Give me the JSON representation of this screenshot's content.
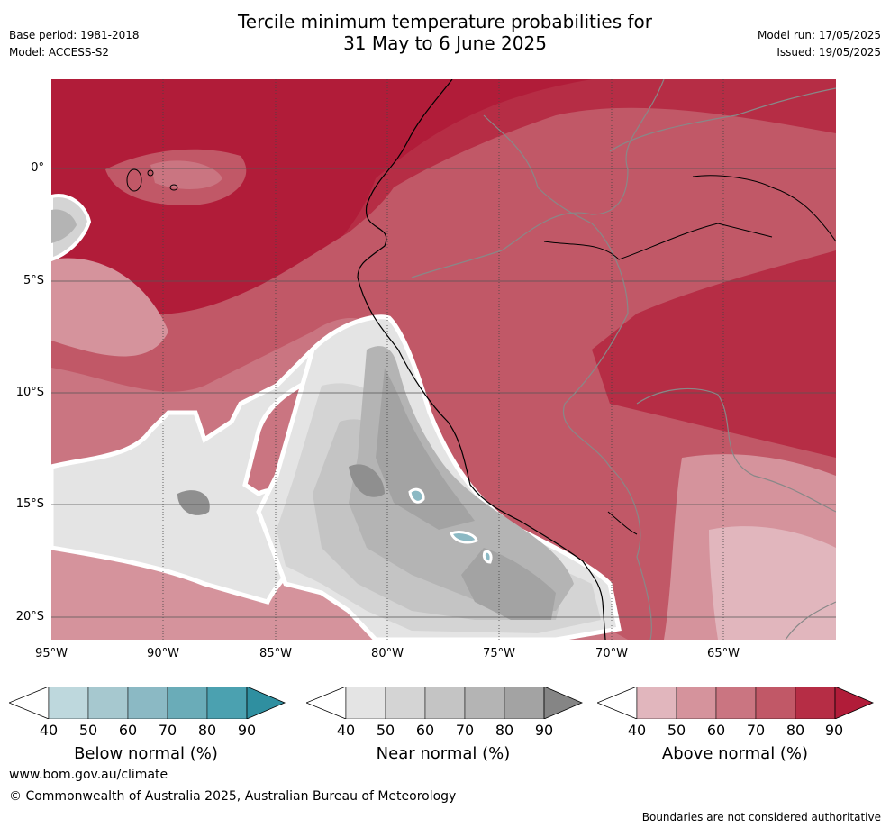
{
  "header": {
    "title_line1": "Tercile minimum temperature probabilities for",
    "title_line2": "31 May to 6 June 2025",
    "base_period": "Base period: 1981-2018",
    "model": "Model: ACCESS-S2",
    "model_run": "Model run: 17/05/2025",
    "issued": "Issued: 19/05/2025"
  },
  "map": {
    "lat_labels": [
      "0°",
      "5°S",
      "10°S",
      "15°S",
      "20°S"
    ],
    "lon_labels": [
      "95°W",
      "90°W",
      "85°W",
      "80°W",
      "75°W",
      "70°W",
      "65°W"
    ],
    "lat_ticks": [
      0,
      -5,
      -10,
      -15,
      -20
    ],
    "lon_ticks": [
      -95,
      -90,
      -85,
      -80,
      -75,
      -70,
      -65
    ],
    "extent": {
      "lon_min": -95,
      "lon_max": -60,
      "lat_min": -21,
      "lat_max": 4
    }
  },
  "colorbars": [
    {
      "name": "below",
      "label": "Below normal (%)",
      "ticks": [
        "40",
        "50",
        "60",
        "70",
        "80",
        "90"
      ],
      "colors": [
        "#bed8dd",
        "#a6c8cf",
        "#8bb9c4",
        "#6aacb8",
        "#4ba1b0",
        "#2f8fa0"
      ]
    },
    {
      "name": "near",
      "label": "Near normal (%)",
      "ticks": [
        "40",
        "50",
        "60",
        "70",
        "80",
        "90"
      ],
      "colors": [
        "#e4e4e4",
        "#d4d4d4",
        "#c4c4c4",
        "#b4b4b4",
        "#a3a3a3",
        "#858585"
      ]
    },
    {
      "name": "above",
      "label": "Above normal (%)",
      "ticks": [
        "40",
        "50",
        "60",
        "70",
        "80",
        "90"
      ],
      "colors": [
        "#e1b6bd",
        "#d5939c",
        "#ca7581",
        "#c15867",
        "#b62d45",
        "#b11c39"
      ]
    }
  ],
  "footer": {
    "website": "www.bom.gov.au/climate",
    "copyright": "© Commonwealth of Australia 2025, Australian Bureau of Meteorology",
    "boundaries": "Boundaries are not considered authoritative"
  }
}
